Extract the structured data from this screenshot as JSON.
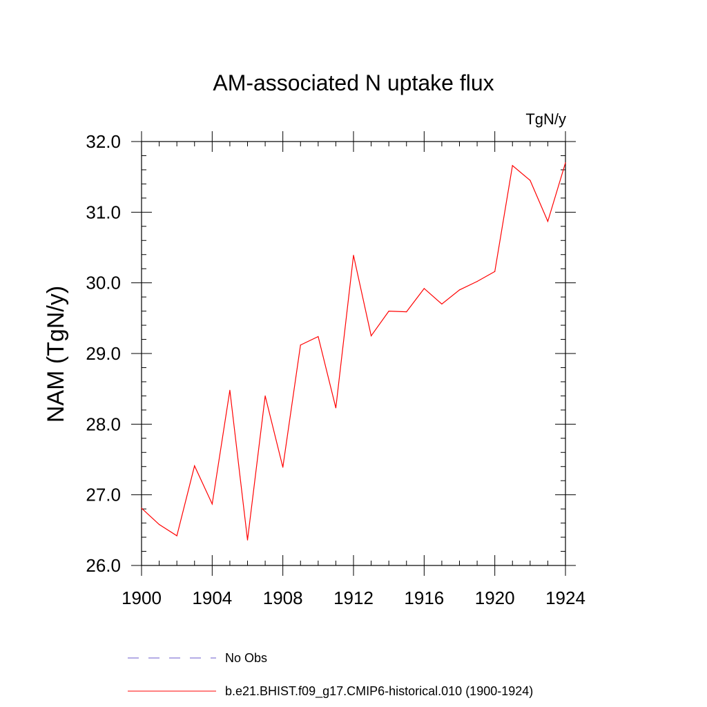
{
  "chart_data": {
    "type": "line",
    "title": "AM-associated N uptake flux",
    "units_label": "TgN/y",
    "ylabel": "NAM  (TgN/y)",
    "xlabel": "",
    "xlim": [
      1900,
      1924
    ],
    "ylim": [
      26.0,
      32.0
    ],
    "x_ticks": [
      1900,
      1904,
      1908,
      1912,
      1916,
      1920,
      1924
    ],
    "x_tick_labels": [
      "1900",
      "1904",
      "1908",
      "1912",
      "1916",
      "1920",
      "1924"
    ],
    "y_ticks": [
      26.0,
      27.0,
      28.0,
      29.0,
      30.0,
      31.0,
      32.0
    ],
    "y_tick_labels": [
      "26.0",
      "27.0",
      "28.0",
      "29.0",
      "30.0",
      "31.0",
      "32.0"
    ],
    "grid": false,
    "legend_position": "bottom",
    "x": [
      1900,
      1901,
      1902,
      1903,
      1904,
      1905,
      1906,
      1907,
      1908,
      1909,
      1910,
      1911,
      1912,
      1913,
      1914,
      1915,
      1916,
      1917,
      1918,
      1919,
      1920,
      1921,
      1922,
      1923,
      1924
    ],
    "series": [
      {
        "name": "b.e21.BHIST.f09_g17.CMIP6-historical.010 (1900-1924)",
        "color": "#ff0000",
        "dashed": false,
        "values": [
          26.81,
          26.58,
          26.42,
          27.41,
          26.87,
          28.48,
          26.36,
          28.4,
          27.39,
          29.12,
          29.24,
          28.23,
          30.39,
          29.25,
          29.6,
          29.59,
          29.92,
          29.7,
          29.9,
          30.02,
          30.16,
          31.66,
          31.45,
          30.87,
          31.7
        ]
      }
    ],
    "legend": [
      {
        "label": "No Obs",
        "color": "#6a5acd",
        "dashed": true
      },
      {
        "label": "b.e21.BHIST.f09_g17.CMIP6-historical.010 (1900-1924)",
        "color": "#ff0000",
        "dashed": false
      }
    ]
  }
}
